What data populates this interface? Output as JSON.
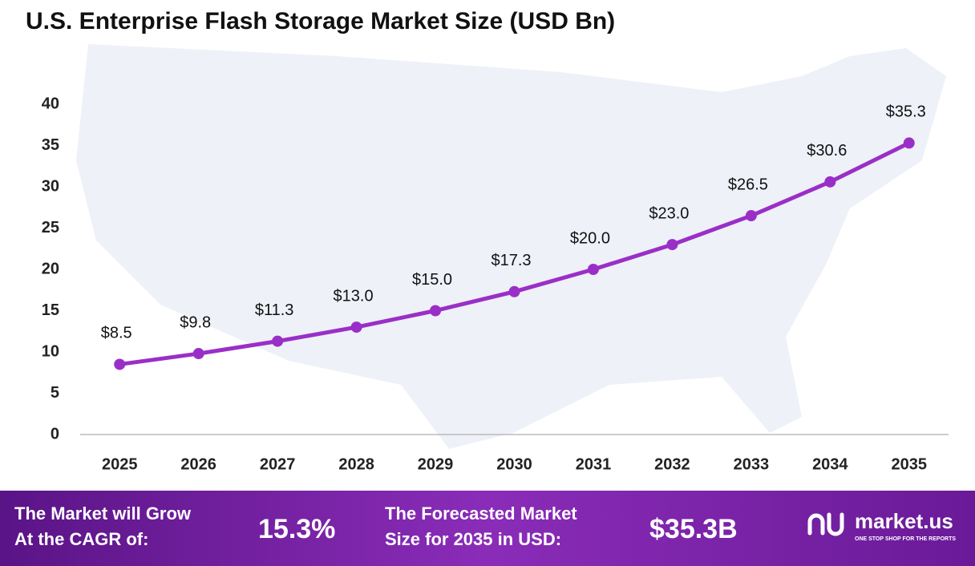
{
  "chart_data": {
    "type": "line",
    "title": "U.S. Enterprise Flash Storage Market Size (USD Bn)",
    "categories": [
      "2025",
      "2026",
      "2027",
      "2028",
      "2029",
      "2030",
      "2031",
      "2032",
      "2033",
      "2034",
      "2035"
    ],
    "values": [
      8.5,
      9.8,
      11.3,
      13.0,
      15.0,
      17.3,
      20.0,
      23.0,
      26.5,
      30.6,
      35.3
    ],
    "value_labels": [
      "$8.5",
      "$9.8",
      "$11.3",
      "$13.0",
      "$15.0",
      "$17.3",
      "$20.0",
      "$23.0",
      "$26.5",
      "$30.6",
      "$35.3"
    ],
    "color": "#9a2fc7",
    "ylim": [
      0,
      40
    ],
    "yticks": [
      0,
      5,
      10,
      15,
      20,
      25,
      30,
      35,
      40
    ],
    "grid": false
  },
  "footer": {
    "cagr_label": [
      "The Market will Grow",
      "At the CAGR of:"
    ],
    "cagr_value": "15.3%",
    "forecast_label": [
      "The Forecasted Market",
      "Size for 2035 in USD:"
    ],
    "forecast_value": "$35.3B",
    "brand": "market.us",
    "tagline": "ONE STOP SHOP FOR THE REPORTS"
  }
}
